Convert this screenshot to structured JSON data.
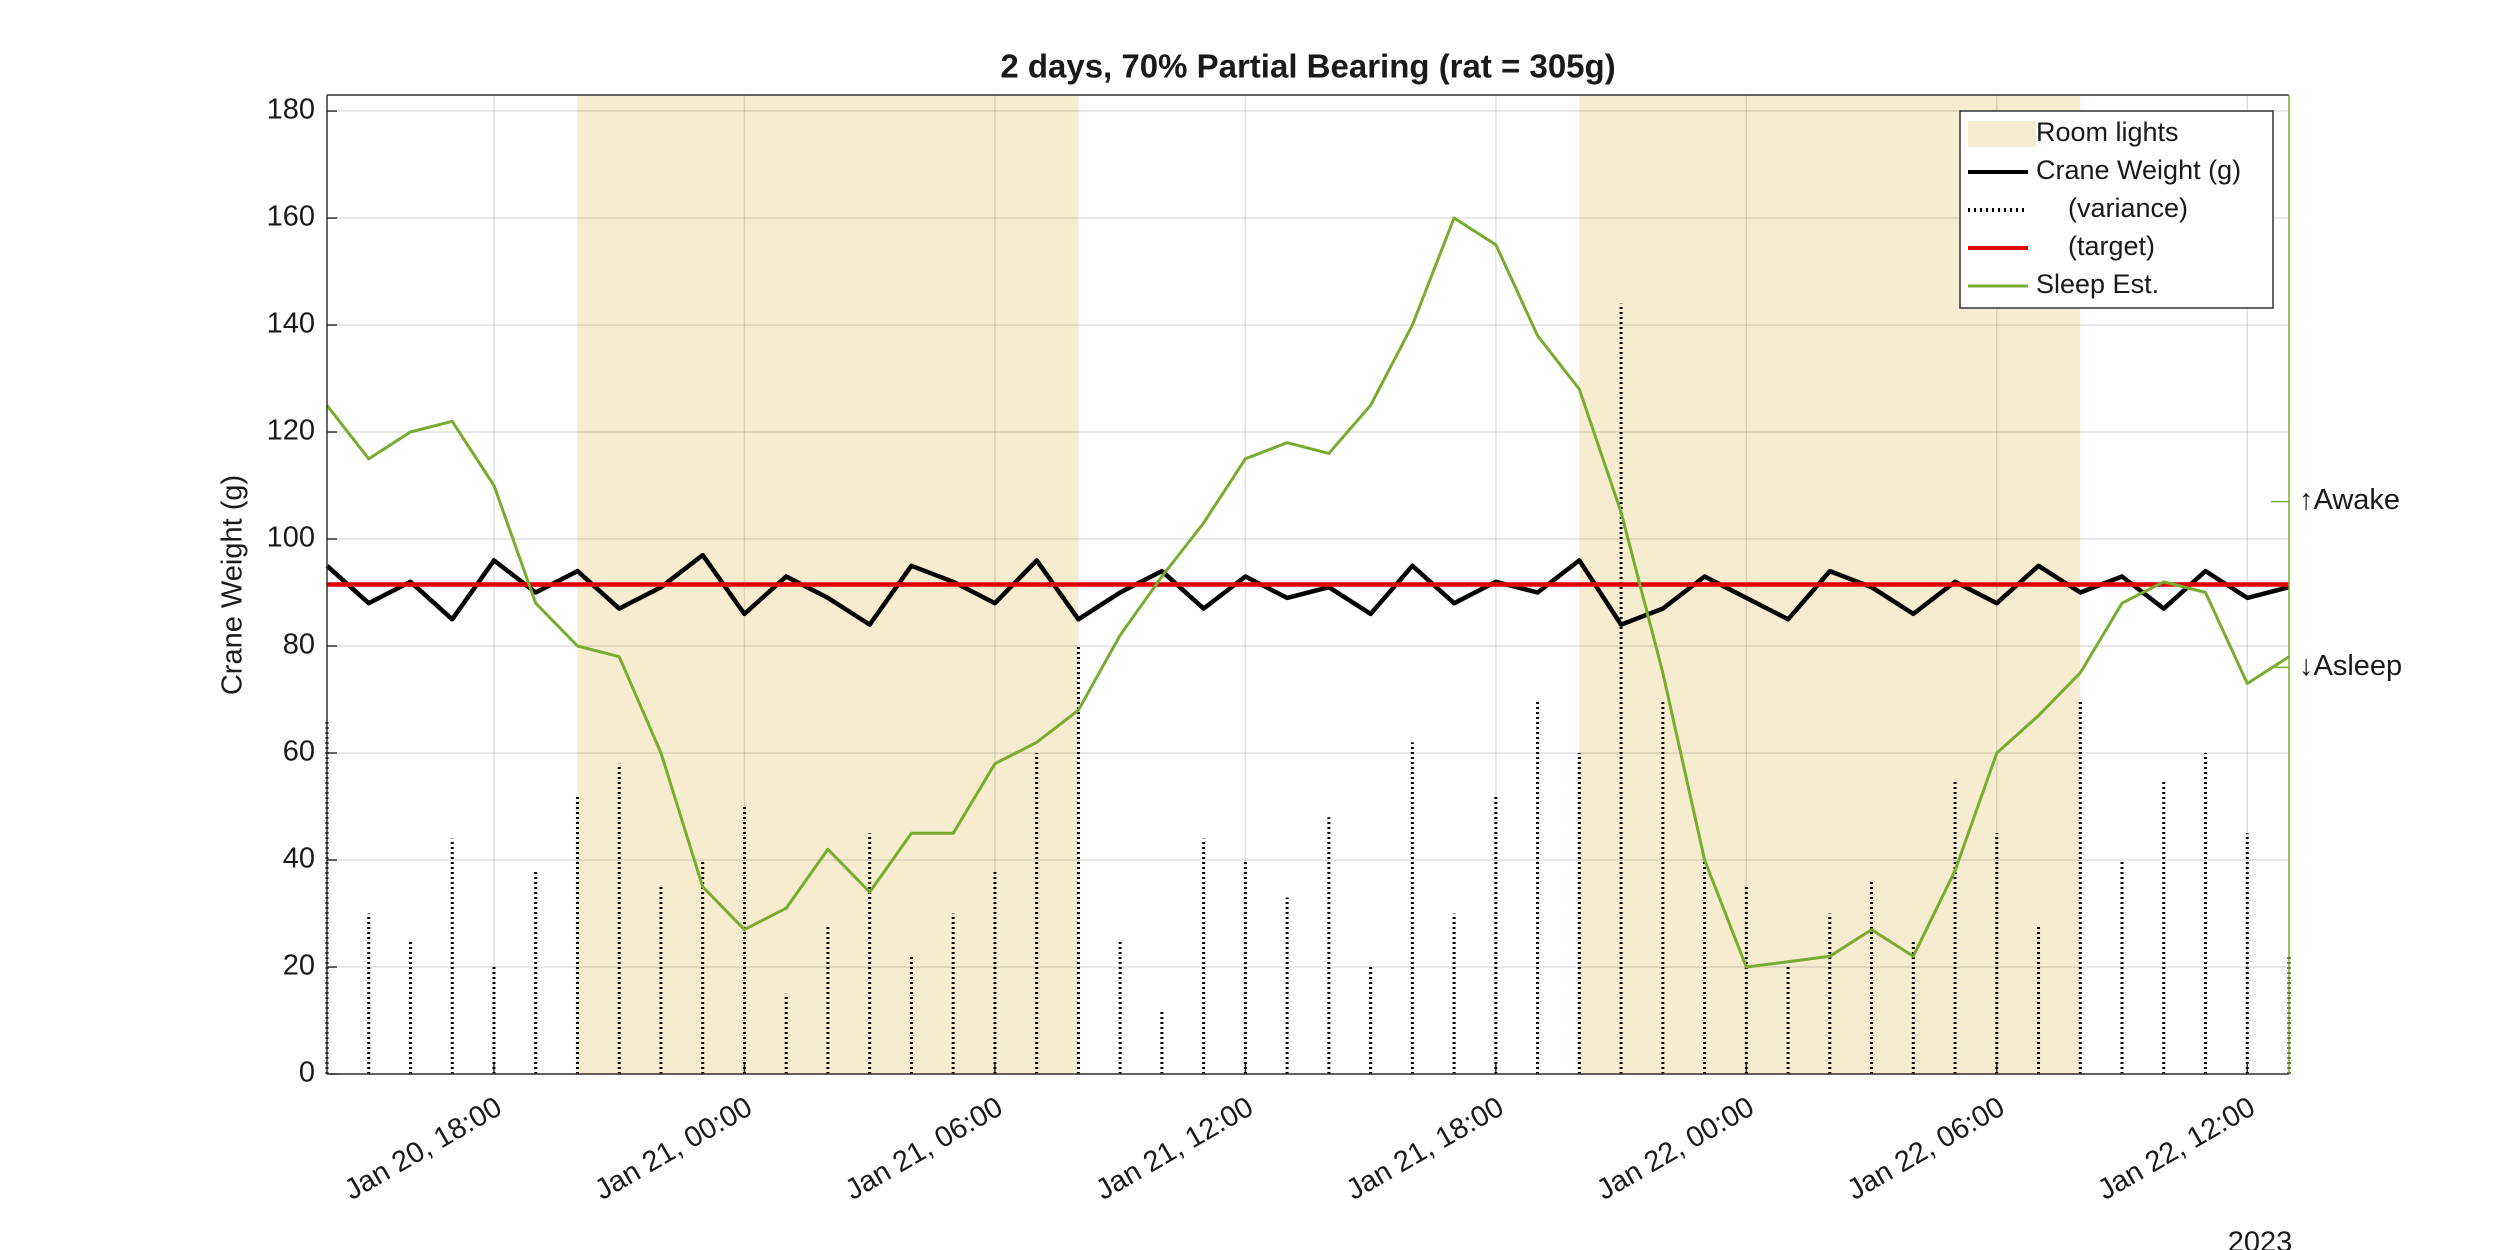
{
  "chart_data": {
    "type": "line",
    "title": "2 days, 70% Partial Bearing (rat = 305g)",
    "ylabel": "Crane Weight (g)",
    "year_label": "2023",
    "x": [
      "Jan 20, 14:00",
      "Jan 20, 15:00",
      "Jan 20, 16:00",
      "Jan 20, 17:00",
      "Jan 20, 18:00",
      "Jan 20, 19:00",
      "Jan 20, 20:00",
      "Jan 20, 21:00",
      "Jan 20, 22:00",
      "Jan 20, 23:00",
      "Jan 21, 00:00",
      "Jan 21, 01:00",
      "Jan 21, 02:00",
      "Jan 21, 03:00",
      "Jan 21, 04:00",
      "Jan 21, 05:00",
      "Jan 21, 06:00",
      "Jan 21, 07:00",
      "Jan 21, 08:00",
      "Jan 21, 09:00",
      "Jan 21, 10:00",
      "Jan 21, 11:00",
      "Jan 21, 12:00",
      "Jan 21, 13:00",
      "Jan 21, 14:00",
      "Jan 21, 15:00",
      "Jan 21, 16:00",
      "Jan 21, 17:00",
      "Jan 21, 18:00",
      "Jan 21, 19:00",
      "Jan 21, 20:00",
      "Jan 21, 21:00",
      "Jan 21, 22:00",
      "Jan 21, 23:00",
      "Jan 22, 00:00",
      "Jan 22, 01:00",
      "Jan 22, 02:00",
      "Jan 22, 03:00",
      "Jan 22, 04:00",
      "Jan 22, 05:00",
      "Jan 22, 06:00",
      "Jan 22, 07:00",
      "Jan 22, 08:00",
      "Jan 22, 09:00",
      "Jan 22, 10:00",
      "Jan 22, 11:00",
      "Jan 22, 12:00",
      "Jan 22, 13:00"
    ],
    "xlim": [
      "Jan 20, 14:00",
      "Jan 22, 13:00"
    ],
    "xticks": [
      "Jan 20, 18:00",
      "Jan 21, 00:00",
      "Jan 21, 06:00",
      "Jan 21, 12:00",
      "Jan 21, 18:00",
      "Jan 22, 00:00",
      "Jan 22, 06:00",
      "Jan 22, 12:00"
    ],
    "ylim": [
      0,
      183
    ],
    "yticks": [
      0,
      20,
      40,
      60,
      80,
      100,
      120,
      140,
      160,
      180
    ],
    "y2lim": [
      0,
      183
    ],
    "y2ticks": [
      {
        "value": 107,
        "label": "↑Awake"
      },
      {
        "value": 76,
        "label": "↓Asleep"
      }
    ],
    "y2color": "#77ac30",
    "grid": true,
    "legend": "top-right",
    "shading": {
      "name": "Room lights",
      "color": "#f8ecd0",
      "spans": [
        [
          "Jan 20, 20:00",
          "Jan 21, 08:00"
        ],
        [
          "Jan 21, 20:00",
          "Jan 22, 08:00"
        ]
      ]
    },
    "series": [
      {
        "name": "Crane Weight (g)",
        "color": "#000000",
        "style": "solid",
        "values": [
          95,
          88,
          92,
          85,
          96,
          90,
          94,
          87,
          91,
          97,
          86,
          93,
          89,
          84,
          95,
          92,
          88,
          96,
          85,
          90,
          94,
          87,
          93,
          89,
          91,
          86,
          95,
          88,
          92,
          90,
          96,
          84,
          87,
          93,
          89,
          85,
          94,
          91,
          86,
          92,
          88,
          95,
          90,
          93,
          87,
          94,
          89,
          91
        ]
      },
      {
        "name": "(variance)",
        "color": "#000000",
        "style": "dotted",
        "values": [
          66,
          30,
          25,
          44,
          20,
          38,
          52,
          58,
          35,
          40,
          50,
          15,
          28,
          45,
          22,
          30,
          38,
          60,
          80,
          25,
          12,
          44,
          40,
          33,
          48,
          20,
          62,
          30,
          52,
          70,
          60,
          144,
          70,
          40,
          35,
          20,
          30,
          36,
          25,
          55,
          45,
          28,
          70,
          40,
          55,
          60,
          45,
          22
        ]
      },
      {
        "name": "(target)",
        "color": "#e00000",
        "style": "solid",
        "values": [
          91.5,
          91.5,
          91.5,
          91.5,
          91.5,
          91.5,
          91.5,
          91.5,
          91.5,
          91.5,
          91.5,
          91.5,
          91.5,
          91.5,
          91.5,
          91.5,
          91.5,
          91.5,
          91.5,
          91.5,
          91.5,
          91.5,
          91.5,
          91.5,
          91.5,
          91.5,
          91.5,
          91.5,
          91.5,
          91.5,
          91.5,
          91.5,
          91.5,
          91.5,
          91.5,
          91.5,
          91.5,
          91.5,
          91.5,
          91.5,
          91.5,
          91.5,
          91.5,
          91.5,
          91.5,
          91.5,
          91.5,
          91.5
        ]
      },
      {
        "name": "Sleep Est.",
        "color": "#77ac30",
        "style": "solid",
        "axis": "y2",
        "values": [
          125,
          115,
          120,
          122,
          110,
          88,
          80,
          78,
          60,
          35,
          27,
          31,
          42,
          34,
          45,
          45,
          58,
          62,
          68,
          82,
          93,
          103,
          115,
          118,
          116,
          125,
          140,
          160,
          155,
          138,
          128,
          105,
          75,
          40,
          20,
          21,
          22,
          27,
          22,
          38,
          60,
          67,
          75,
          88,
          92,
          90,
          73,
          78
        ]
      }
    ]
  }
}
